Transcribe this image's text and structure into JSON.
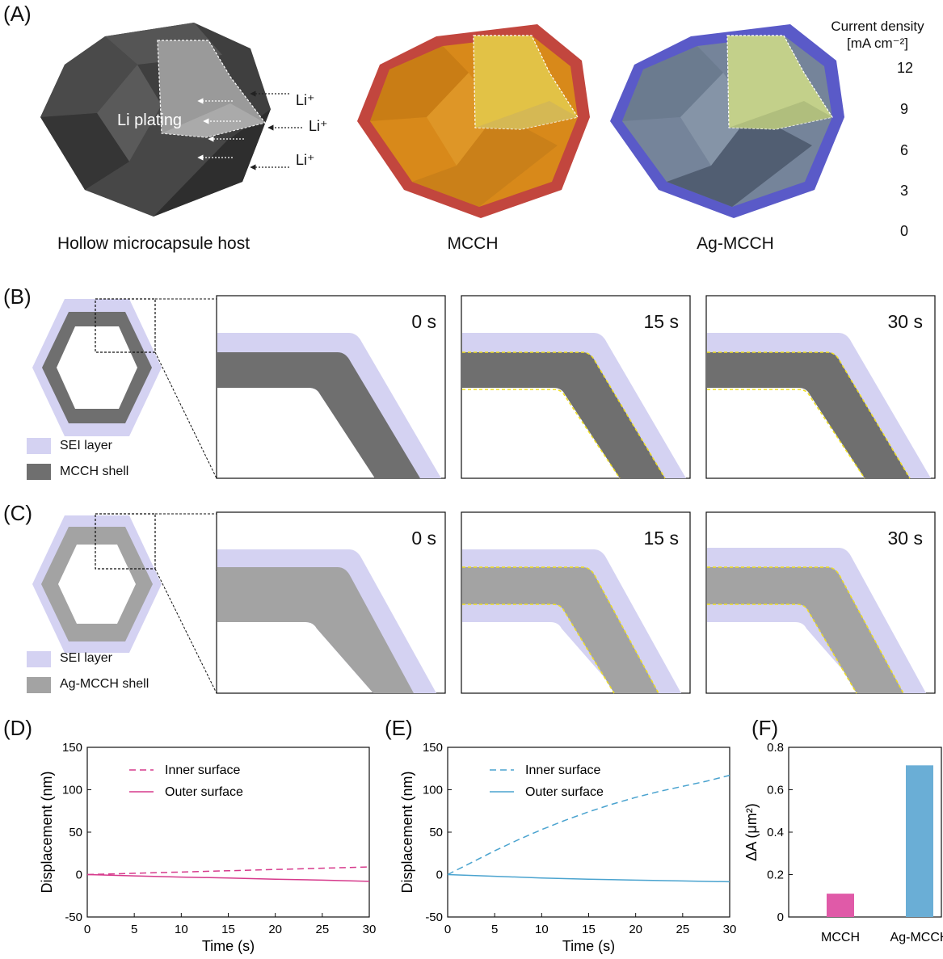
{
  "panels": {
    "A": "(A)",
    "B": "(B)",
    "C": "(C)",
    "D": "(D)",
    "E": "(E)",
    "F": "(F)"
  },
  "panel_a": {
    "host_caption": "Hollow microcapsule host",
    "mcch_caption": "MCCH",
    "agmcch_caption": "Ag-MCCH",
    "li_plating_label": "Li plating",
    "li_ion_label": "Li⁺",
    "colorbar": {
      "title_line1": "Current density",
      "title_line2": "[mA cm⁻²]",
      "ticks": [
        "12",
        "9",
        "6",
        "3",
        "0"
      ]
    }
  },
  "panel_b": {
    "legend": [
      {
        "label": "SEI layer",
        "color": "#d4d2f2"
      },
      {
        "label": "MCCH shell",
        "color": "#6f6f6f"
      }
    ],
    "times": [
      "0 s",
      "15 s",
      "30 s"
    ]
  },
  "panel_c": {
    "legend": [
      {
        "label": "SEI layer",
        "color": "#d4d2f2"
      },
      {
        "label": "Ag-MCCH shell",
        "color": "#a3a3a3"
      }
    ],
    "times": [
      "0 s",
      "15 s",
      "30 s"
    ]
  },
  "chart_data": [
    {
      "type": "line",
      "panel": "D",
      "xlabel": "Time (s)",
      "ylabel": "Displacement (nm)",
      "xlim": [
        0,
        30
      ],
      "ylim": [
        -50,
        150
      ],
      "xticks": [
        0,
        5,
        10,
        15,
        20,
        25,
        30
      ],
      "yticks": [
        -50,
        0,
        50,
        100,
        150
      ],
      "legend_position": "top-center",
      "color": "#d63a8c",
      "series": [
        {
          "name": "Inner surface",
          "style": "dashed",
          "x": [
            0,
            5,
            10,
            15,
            20,
            25,
            30
          ],
          "y": [
            0,
            1.5,
            3,
            4.5,
            6,
            7.5,
            9
          ]
        },
        {
          "name": "Outer surface",
          "style": "solid",
          "x": [
            0,
            5,
            10,
            15,
            20,
            25,
            30
          ],
          "y": [
            0,
            -1.5,
            -3,
            -4,
            -5.5,
            -6.5,
            -8
          ]
        }
      ]
    },
    {
      "type": "line",
      "panel": "E",
      "xlabel": "Time (s)",
      "ylabel": "Displacement (nm)",
      "xlim": [
        0,
        30
      ],
      "ylim": [
        -50,
        150
      ],
      "xticks": [
        0,
        5,
        10,
        15,
        20,
        25,
        30
      ],
      "yticks": [
        -50,
        0,
        50,
        100,
        150
      ],
      "legend_position": "top-center",
      "color": "#4aa3cf",
      "series": [
        {
          "name": "Inner surface",
          "style": "dashed",
          "x": [
            0,
            2.5,
            5,
            7.5,
            10,
            12.5,
            15,
            17.5,
            20,
            22.5,
            25,
            27.5,
            30
          ],
          "y": [
            0,
            14,
            28,
            41,
            53,
            64,
            74,
            83,
            91,
            98,
            104,
            110,
            117
          ]
        },
        {
          "name": "Outer surface",
          "style": "solid",
          "x": [
            0,
            5,
            10,
            15,
            20,
            25,
            30
          ],
          "y": [
            0,
            -2,
            -4,
            -5.5,
            -6.5,
            -7.5,
            -8.5
          ]
        }
      ]
    },
    {
      "type": "bar",
      "panel": "F",
      "ylabel": "ΔA (μm²)",
      "ylim": [
        0,
        0.8
      ],
      "yticks": [
        0,
        0.2,
        0.4,
        0.6,
        0.8
      ],
      "categories": [
        "MCCH",
        "Ag-MCCH"
      ],
      "values": [
        0.11,
        0.715
      ],
      "colors": [
        "#e05aa8",
        "#6aaed6"
      ]
    }
  ]
}
